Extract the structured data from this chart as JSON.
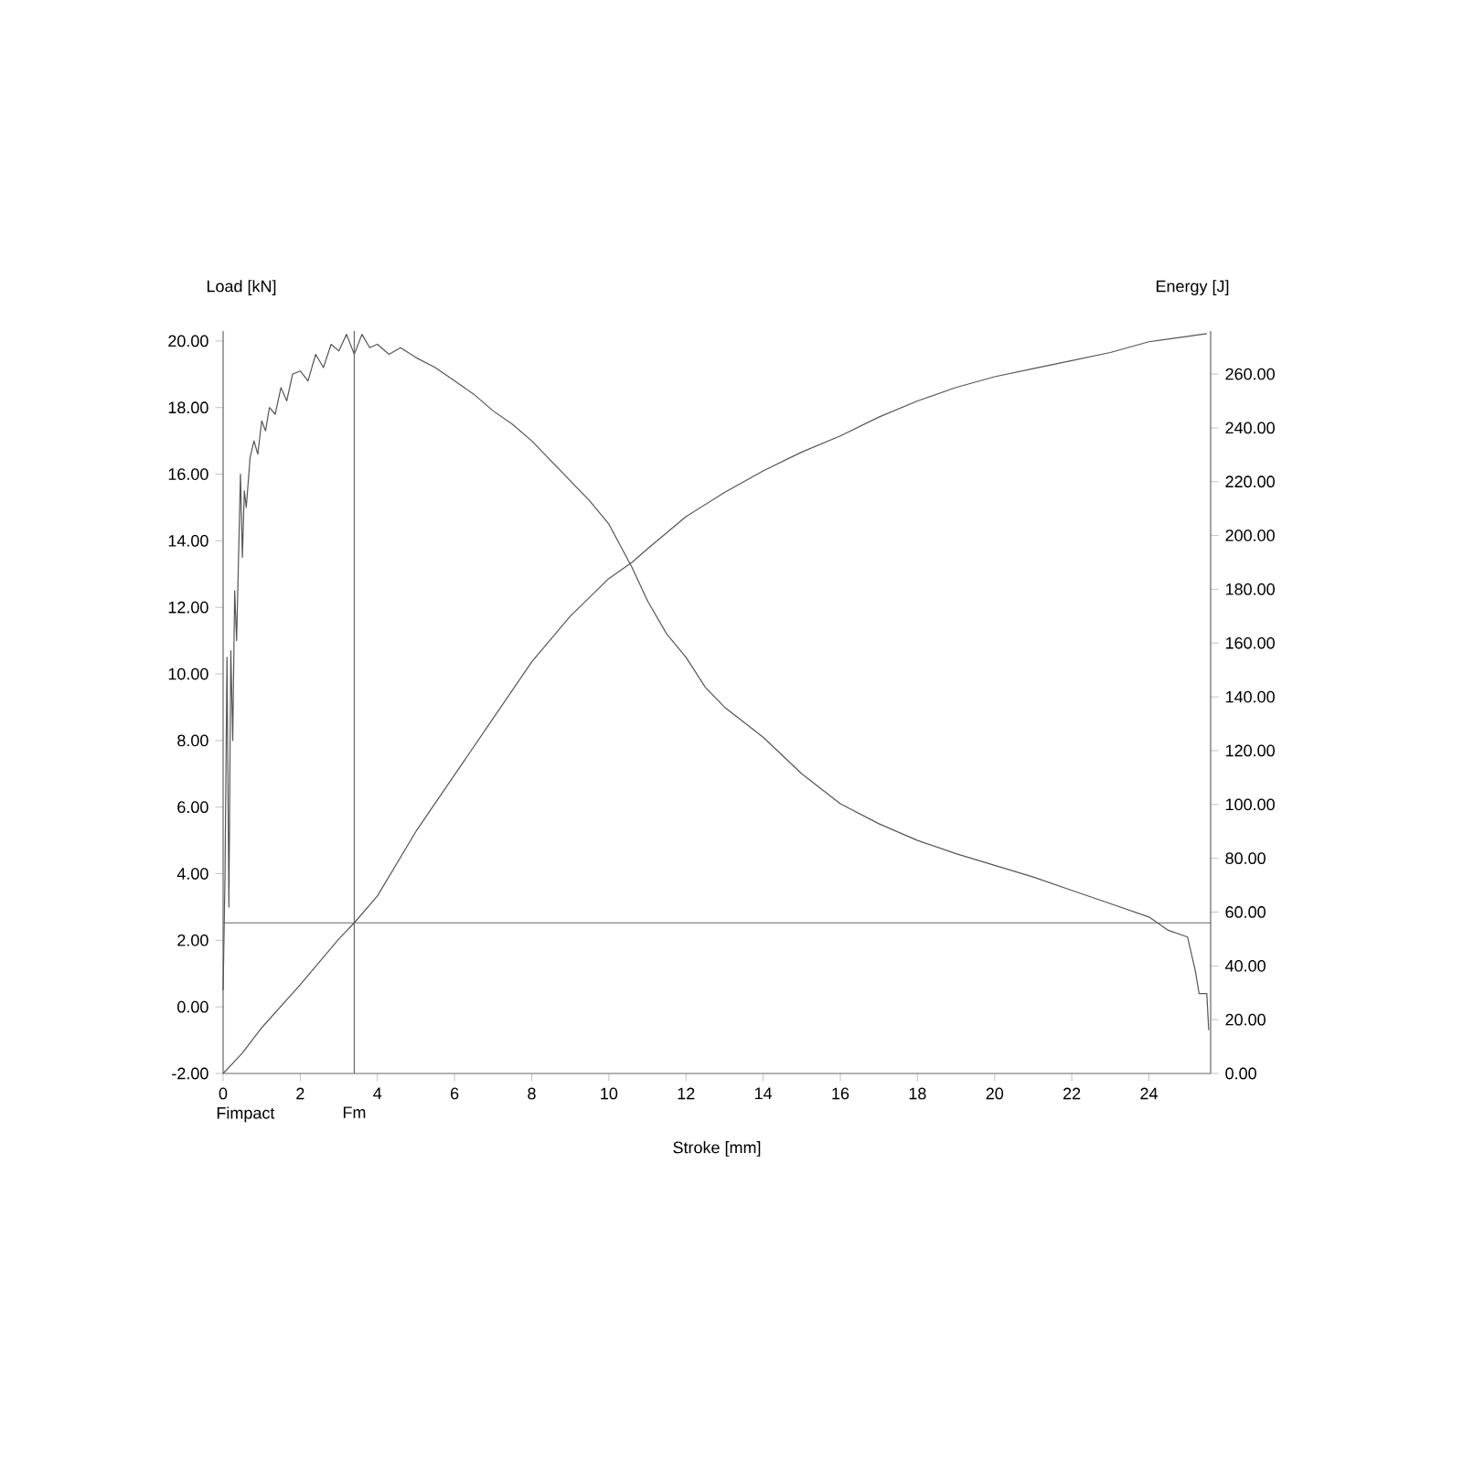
{
  "chart_data": {
    "type": "line",
    "xlabel": "Stroke [mm]",
    "ylabel": "Load [kN]",
    "y2label": "Energy [J]",
    "xlim": [
      0,
      25.6
    ],
    "ylim": [
      -2,
      20.3
    ],
    "y2lim": [
      0,
      276
    ],
    "xticks": [
      0,
      2,
      4,
      6,
      8,
      10,
      12,
      14,
      16,
      18,
      20,
      22,
      24
    ],
    "yticks": [
      {
        "value": -2,
        "label": "-2.00"
      },
      {
        "value": 0,
        "label": "0.00"
      },
      {
        "value": 2,
        "label": "2.00"
      },
      {
        "value": 4,
        "label": "4.00"
      },
      {
        "value": 6,
        "label": "6.00"
      },
      {
        "value": 8,
        "label": "8.00"
      },
      {
        "value": 10,
        "label": "10.00"
      },
      {
        "value": 12,
        "label": "12.00"
      },
      {
        "value": 14,
        "label": "14.00"
      },
      {
        "value": 16,
        "label": "16.00"
      },
      {
        "value": 18,
        "label": "18.00"
      },
      {
        "value": 20,
        "label": "20.00"
      }
    ],
    "y2ticks": [
      {
        "value": 0,
        "label": "0.00"
      },
      {
        "value": 20,
        "label": "20.00"
      },
      {
        "value": 40,
        "label": "40.00"
      },
      {
        "value": 60,
        "label": "60.00"
      },
      {
        "value": 80,
        "label": "80.00"
      },
      {
        "value": 100,
        "label": "100.00"
      },
      {
        "value": 120,
        "label": "120.00"
      },
      {
        "value": 140,
        "label": "140.00"
      },
      {
        "value": 160,
        "label": "160.00"
      },
      {
        "value": 180,
        "label": "180.00"
      },
      {
        "value": 200,
        "label": "200.00"
      },
      {
        "value": 220,
        "label": "220.00"
      },
      {
        "value": 240,
        "label": "240.00"
      },
      {
        "value": 260,
        "label": "260.00"
      }
    ],
    "series": [
      {
        "color": "#555555",
        "x": [
          0,
          0.05,
          0.1,
          0.15,
          0.2,
          0.25,
          0.3,
          0.35,
          0.45,
          0.5,
          0.55,
          0.6,
          0.7,
          0.8,
          0.9,
          1.0,
          1.1,
          1.2,
          1.35,
          1.5,
          1.65,
          1.8,
          2.0,
          2.2,
          2.4,
          2.6,
          2.8,
          3.0,
          3.2,
          3.4,
          3.6,
          3.8,
          4.0,
          4.3,
          4.6,
          5.0,
          5.5,
          6.0,
          6.5,
          7.0,
          7.5,
          8.0,
          8.5,
          9.0,
          9.5,
          10.0,
          10.6,
          11.0,
          11.5,
          12.0,
          12.5,
          13.0,
          14.0,
          15.0,
          16.0,
          17.0,
          18.0,
          19.0,
          20.0,
          21.0,
          22.0,
          23.0,
          24.0,
          24.5,
          25.0,
          25.2,
          25.3,
          25.5,
          25.55
        ],
        "values": [
          0.5,
          4,
          10.5,
          3,
          10.7,
          8,
          12.5,
          11,
          16,
          13.5,
          15.5,
          15,
          16.5,
          17,
          16.6,
          17.6,
          17.3,
          18,
          17.8,
          18.6,
          18.2,
          19,
          19.1,
          18.8,
          19.6,
          19.2,
          19.9,
          19.7,
          20.2,
          19.6,
          20.2,
          19.8,
          19.9,
          19.6,
          19.8,
          19.5,
          19.2,
          18.8,
          18.4,
          17.9,
          17.5,
          17.0,
          16.4,
          15.8,
          15.2,
          14.5,
          13.2,
          12.2,
          11.2,
          10.5,
          9.6,
          9.0,
          8.1,
          7.0,
          6.1,
          5.5,
          5.0,
          4.6,
          4.25,
          3.9,
          3.5,
          3.1,
          2.7,
          2.3,
          2.1,
          1.1,
          0.4,
          0.4,
          -0.7
        ]
      },
      {
        "color": "#555555",
        "axis": "y2",
        "x": [
          0,
          0.5,
          1,
          2,
          3,
          3.4,
          4,
          5,
          6,
          7,
          8,
          9,
          10,
          10.6,
          11,
          12,
          13,
          14,
          15,
          16,
          17,
          18,
          19,
          20,
          21,
          22,
          23,
          24,
          25,
          25.5
        ],
        "values": [
          0,
          7.6,
          17,
          33,
          50,
          56,
          66,
          90,
          111,
          132,
          153,
          170,
          184,
          190,
          195,
          207,
          216,
          224,
          231,
          237,
          244,
          250,
          255,
          259,
          262,
          265,
          268,
          272,
          274,
          275
        ]
      }
    ],
    "annotations": [
      "Fimpact"
    ],
    "ref_lines": [
      {
        "axis": "x",
        "value": 3.4,
        "label": "Fm"
      },
      {
        "axis": "y2",
        "value": 56
      }
    ]
  }
}
